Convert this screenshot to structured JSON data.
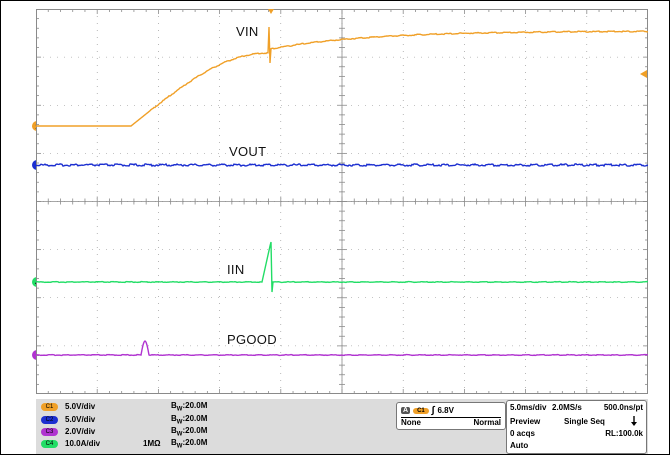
{
  "colors": {
    "vin": "#f0a028",
    "vout": "#1c2fd0",
    "iin": "#22dd66",
    "pgood": "#b033d0",
    "grid": "#8a8a8a"
  },
  "traces": {
    "vin": {
      "label": "VIN",
      "marker": "1"
    },
    "vout": {
      "label": "VOUT",
      "marker": ""
    },
    "iin": {
      "label": "IIN",
      "marker": "4"
    },
    "pgood": {
      "label": "PGOOD",
      "marker": ""
    }
  },
  "channels": [
    {
      "badge": "C1",
      "scale": "5.0V/div",
      "termination": "",
      "bw": "20.0M"
    },
    {
      "badge": "C2",
      "scale": "5.0V/div",
      "termination": "",
      "bw": "20.0M"
    },
    {
      "badge": "C3",
      "scale": "2.0V/div",
      "termination": "",
      "bw": "20.0M"
    },
    {
      "badge": "C4",
      "scale": "10.0A/div",
      "termination": "1MΩ",
      "bw": "20.0M"
    }
  ],
  "bw_prefix": "B",
  "bw_sub": "W",
  "trigger": {
    "tag": "A",
    "source": "C1",
    "slope": "∫",
    "level": "6.8V",
    "coupling": "None",
    "mode": "Normal"
  },
  "acquisition": {
    "timebase": "5.0ms/div",
    "sample_rate": "2.0MS/s",
    "resolution": "500.0ns/pt",
    "preview": "Preview",
    "seq": "Single Seq",
    "acqs": "0 acqs",
    "record_length": "RL:100.0k",
    "auto": "Auto"
  }
}
